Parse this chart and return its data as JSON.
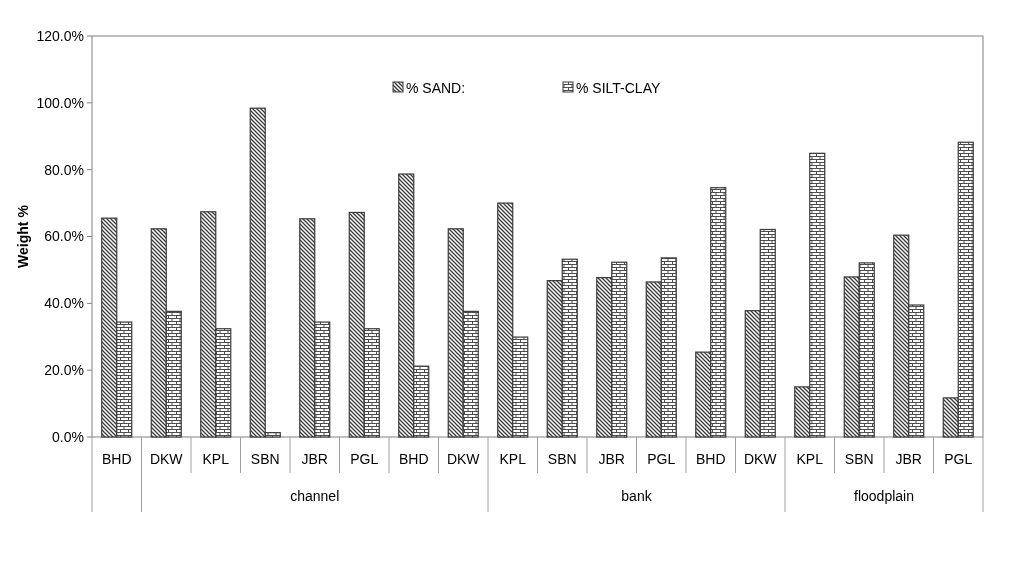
{
  "chart_data": {
    "type": "bar",
    "ylabel": "Weight %",
    "categories": [
      "BHD",
      "DKW",
      "KPL",
      "SBN",
      "JBR",
      "PGL",
      "BHD",
      "DKW",
      "KPL",
      "SBN",
      "JBR",
      "PGL",
      "BHD",
      "DKW",
      "KPL",
      "SBN",
      "JBR",
      "PGL"
    ],
    "series": [
      {
        "name": "% SAND:",
        "color": "#3a3a3a",
        "values": [
          65.5,
          62.3,
          67.4,
          98.4,
          65.3,
          67.2,
          78.7,
          62.3,
          70.0,
          46.8,
          47.7,
          46.4,
          25.4,
          37.8,
          15.0,
          47.9,
          60.4,
          11.7
        ]
      },
      {
        "name": "% SILT-CLAY",
        "color": "#3a3a3a",
        "values": [
          34.4,
          37.6,
          32.4,
          1.3,
          34.4,
          32.4,
          21.2,
          37.6,
          29.9,
          53.2,
          52.3,
          53.6,
          74.6,
          62.1,
          84.9,
          52.1,
          39.5,
          88.2
        ]
      }
    ],
    "ylim": [
      0,
      120
    ],
    "yticks": [
      {
        "value": 0,
        "label": "0.0%"
      },
      {
        "value": 20,
        "label": "20.0%"
      },
      {
        "value": 40,
        "label": "40.0%"
      },
      {
        "value": 60,
        "label": "60.0%"
      },
      {
        "value": 80,
        "label": "80.0%"
      },
      {
        "value": 100,
        "label": "100.0%"
      },
      {
        "value": 120,
        "label": "120.0%"
      }
    ],
    "annotations": [
      "channel",
      "bank",
      "floodplain"
    ],
    "legend": "top",
    "grid": false
  }
}
